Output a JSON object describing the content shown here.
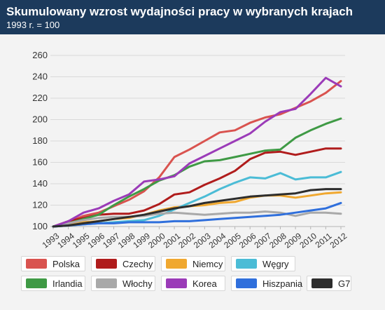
{
  "header": {
    "title": "Skumulowany wzrost wydajności pracy w wybranych krajach",
    "subtitle": "1993 r. = 100"
  },
  "colors": {
    "header_bg": "#1c3a5c",
    "plot_bg": "#f3f3f3"
  },
  "chart_data": {
    "type": "line",
    "title": "Skumulowany wzrost wydajności pracy w wybranych krajach",
    "subtitle": "1993 r. = 100",
    "xlabel": "",
    "ylabel": "",
    "ylim": [
      100,
      260
    ],
    "yticks": [
      "100",
      "120",
      "140",
      "160",
      "180",
      "200",
      "220",
      "240",
      "260"
    ],
    "x": [
      "1993",
      "1994",
      "1995",
      "1996",
      "1997",
      "1998",
      "1999",
      "2000",
      "2001",
      "2002",
      "2003",
      "2004",
      "2005",
      "2006",
      "2007",
      "2008",
      "2009",
      "2010",
      "2011",
      "2012"
    ],
    "grid": "horizontal",
    "legend_position": "bottom",
    "series": [
      {
        "name": "Polska",
        "color": "#d9534f",
        "values": [
          100,
          104,
          110,
          113,
          119,
          125,
          133,
          146,
          165,
          172,
          180,
          188,
          190,
          197,
          202,
          205,
          211,
          217,
          225,
          236
        ]
      },
      {
        "name": "Czechy",
        "color": "#b01c1c",
        "values": [
          100,
          105,
          108,
          111,
          112,
          112,
          115,
          121,
          130,
          132,
          139,
          145,
          152,
          163,
          169,
          170,
          167,
          170,
          173,
          173
        ]
      },
      {
        "name": "Niemcy",
        "color": "#f0a830",
        "values": [
          100,
          102,
          104,
          105,
          107,
          108,
          111,
          115,
          118,
          119,
          120,
          122,
          123,
          127,
          129,
          129,
          127,
          129,
          131,
          132
        ]
      },
      {
        "name": "Węgry",
        "color": "#4bbcd6",
        "values": [
          100,
          101,
          102,
          103,
          104,
          105,
          106,
          110,
          116,
          122,
          128,
          135,
          141,
          146,
          145,
          150,
          144,
          146,
          146,
          151
        ]
      },
      {
        "name": "Irlandia",
        "color": "#3f9a45",
        "values": [
          100,
          103,
          107,
          111,
          120,
          128,
          135,
          143,
          148,
          156,
          161,
          162,
          165,
          168,
          171,
          172,
          183,
          190,
          196,
          201
        ]
      },
      {
        "name": "Włochy",
        "color": "#a9a9a9",
        "values": [
          100,
          103,
          106,
          108,
          109,
          109,
          110,
          112,
          113,
          112,
          111,
          112,
          113,
          113,
          114,
          113,
          110,
          113,
          113,
          112
        ]
      },
      {
        "name": "Korea",
        "color": "#9b3bb8",
        "values": [
          100,
          105,
          113,
          117,
          124,
          130,
          142,
          144,
          147,
          159,
          166,
          173,
          180,
          187,
          198,
          207,
          210,
          224,
          239,
          231
        ]
      },
      {
        "name": "Hiszpania",
        "color": "#2f6fdc",
        "values": [
          100,
          101,
          102,
          103,
          103,
          104,
          104,
          104,
          105,
          105,
          106,
          107,
          108,
          109,
          110,
          111,
          113,
          115,
          117,
          122
        ]
      },
      {
        "name": "G7",
        "color": "#2d2d2d",
        "values": [
          100,
          101,
          103,
          105,
          107,
          109,
          111,
          114,
          117,
          119,
          122,
          124,
          126,
          128,
          129,
          130,
          131,
          134,
          135,
          135
        ]
      }
    ]
  }
}
